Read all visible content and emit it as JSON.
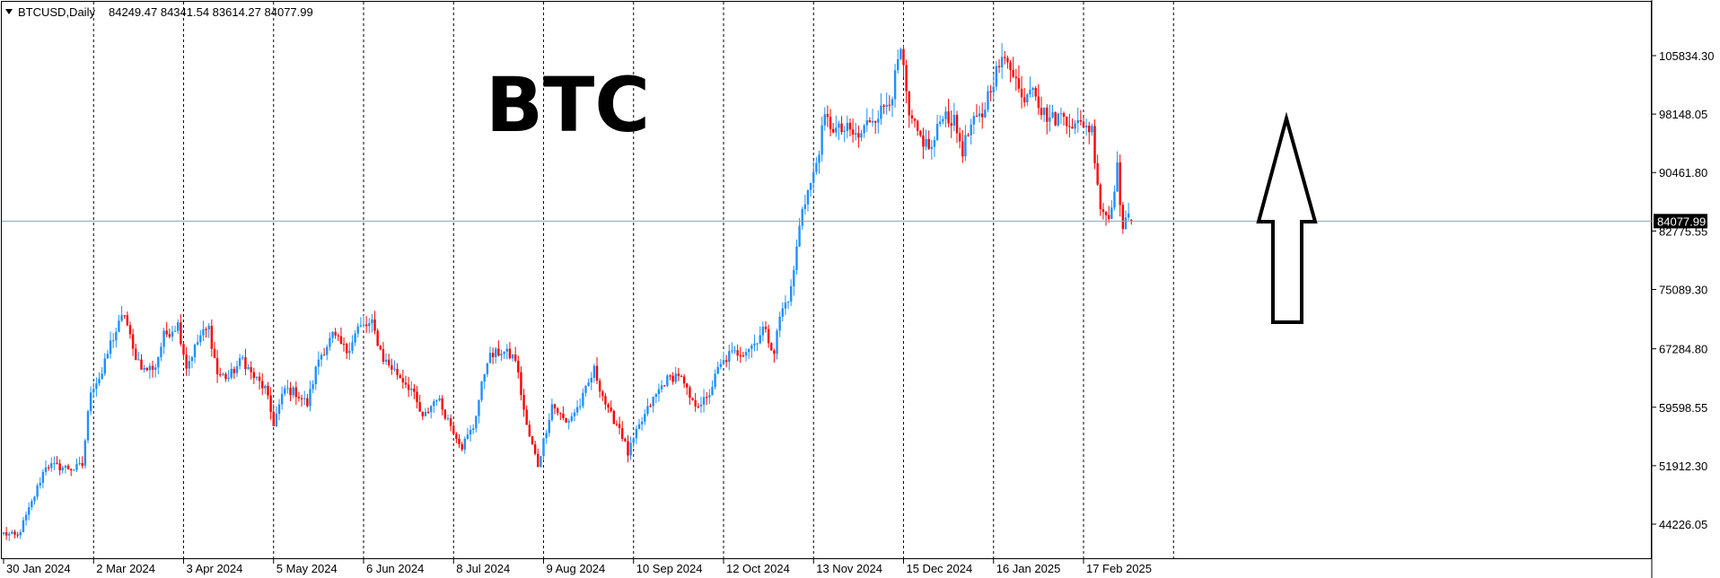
{
  "header": {
    "symbol_label": "BTCUSD,Daily",
    "ohlc_label": "84249.47 84341.54 83614.27 84077.99"
  },
  "annotation": {
    "title": "BTC"
  },
  "current_price_label": "84077.99",
  "colors": {
    "bull": "#1e90ff",
    "bear": "#ff0000",
    "grid": "#000000",
    "price_line": "#8aa2b5",
    "price_tag_bg": "#000000",
    "price_tag_fg": "#ffffff"
  },
  "chart_data": {
    "type": "candlestick",
    "symbol": "BTCUSD",
    "timeframe": "Daily",
    "y_ticks": [
      "105834.30",
      "98148.05",
      "90461.80",
      "82775.55",
      "75089.30",
      "67284.80",
      "59598.55",
      "51912.30",
      "44226.05"
    ],
    "y_tick_values": [
      105834.3,
      98148.05,
      90461.8,
      82775.55,
      75089.3,
      67284.8,
      59598.55,
      51912.3,
      44226.05
    ],
    "ylim": [
      40000,
      112000
    ],
    "x_tick_labels": [
      "30 Jan 2024",
      "2 Mar 2024",
      "3 Apr 2024",
      "5 May 2024",
      "6 Jun 2024",
      "8 Jul 2024",
      "9 Aug 2024",
      "10 Sep 2024",
      "12 Oct 2024",
      "13 Nov 2024",
      "15 Dec 2024",
      "16 Jan 2025",
      "17 Feb 2025"
    ],
    "x_tick_day_index": [
      0,
      32,
      64,
      96,
      128,
      160,
      192,
      224,
      256,
      288,
      320,
      352,
      384
    ],
    "grid": "vertical dotted",
    "current_price": 84077.99,
    "last_bar": {
      "open": 84249.47,
      "high": 84341.54,
      "low": 83614.27,
      "close": 84077.99
    },
    "total_days": 402,
    "close_keypoints": [
      [
        0,
        43000
      ],
      [
        5,
        42600
      ],
      [
        10,
        47000
      ],
      [
        15,
        52000
      ],
      [
        25,
        51500
      ],
      [
        28,
        52000
      ],
      [
        31,
        62000
      ],
      [
        35,
        64000
      ],
      [
        38,
        68000
      ],
      [
        43,
        72000
      ],
      [
        46,
        67000
      ],
      [
        50,
        64500
      ],
      [
        54,
        65000
      ],
      [
        57,
        69000
      ],
      [
        62,
        70500
      ],
      [
        65,
        65000
      ],
      [
        70,
        69000
      ],
      [
        73,
        70000
      ],
      [
        76,
        64000
      ],
      [
        80,
        63500
      ],
      [
        85,
        66000
      ],
      [
        88,
        64000
      ],
      [
        93,
        62000
      ],
      [
        96,
        57500
      ],
      [
        100,
        62000
      ],
      [
        104,
        61500
      ],
      [
        108,
        60000
      ],
      [
        112,
        66000
      ],
      [
        117,
        69000
      ],
      [
        122,
        67000
      ],
      [
        126,
        70000
      ],
      [
        131,
        70500
      ],
      [
        135,
        66000
      ],
      [
        140,
        64000
      ],
      [
        145,
        62000
      ],
      [
        149,
        58000
      ],
      [
        154,
        61000
      ],
      [
        158,
        58000
      ],
      [
        163,
        54500
      ],
      [
        167,
        57000
      ],
      [
        172,
        66000
      ],
      [
        177,
        67000
      ],
      [
        182,
        66000
      ],
      [
        186,
        57000
      ],
      [
        190,
        52000
      ],
      [
        195,
        60000
      ],
      [
        200,
        57500
      ],
      [
        205,
        60000
      ],
      [
        210,
        64500
      ],
      [
        215,
        59000
      ],
      [
        219,
        57000
      ],
      [
        222,
        53500
      ],
      [
        226,
        57000
      ],
      [
        230,
        60000
      ],
      [
        235,
        63000
      ],
      [
        240,
        64000
      ],
      [
        245,
        60000
      ],
      [
        250,
        60500
      ],
      [
        254,
        64500
      ],
      [
        258,
        66500
      ],
      [
        263,
        67000
      ],
      [
        267,
        68000
      ],
      [
        270,
        70000
      ],
      [
        274,
        67000
      ],
      [
        276,
        71500
      ],
      [
        280,
        75000
      ],
      [
        284,
        86000
      ],
      [
        288,
        90000
      ],
      [
        292,
        97500
      ],
      [
        296,
        96000
      ],
      [
        300,
        96000
      ],
      [
        304,
        95000
      ],
      [
        308,
        97500
      ],
      [
        312,
        98500
      ],
      [
        316,
        101000
      ],
      [
        319,
        106500
      ],
      [
        322,
        97500
      ],
      [
        326,
        95000
      ],
      [
        330,
        93500
      ],
      [
        334,
        98500
      ],
      [
        338,
        97000
      ],
      [
        341,
        93500
      ],
      [
        344,
        96500
      ],
      [
        348,
        98000
      ],
      [
        351,
        102000
      ],
      [
        354,
        104500
      ],
      [
        357,
        105500
      ],
      [
        359,
        104000
      ],
      [
        362,
        100000
      ],
      [
        366,
        102500
      ],
      [
        369,
        98500
      ],
      [
        373,
        97500
      ],
      [
        377,
        98000
      ],
      [
        381,
        96500
      ],
      [
        384,
        97000
      ],
      [
        387,
        96000
      ],
      [
        390,
        86000
      ],
      [
        393,
        84500
      ],
      [
        396,
        91000
      ],
      [
        398,
        83000
      ],
      [
        400,
        84500
      ],
      [
        401,
        84077.99
      ]
    ]
  }
}
